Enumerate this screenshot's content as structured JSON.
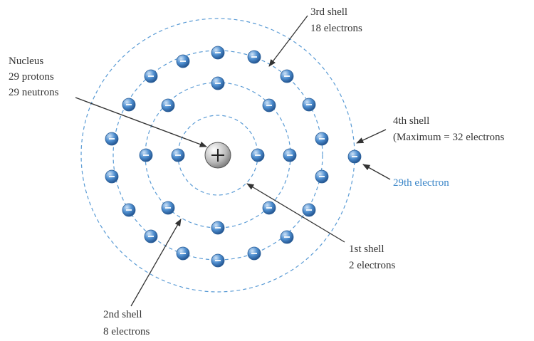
{
  "nucleus": {
    "label": "Nucleus",
    "protons": "29 protons",
    "neutrons": "29 neutrons"
  },
  "shells": [
    {
      "label": "1st shell",
      "note": "2 electrons"
    },
    {
      "label": "2nd shell",
      "note": "8 electrons"
    },
    {
      "label": "3rd shell",
      "note": "18 electrons"
    },
    {
      "label": "4th shell",
      "note": "(Maximum = 32 electrons"
    }
  ],
  "electron_label": "29th electron"
}
